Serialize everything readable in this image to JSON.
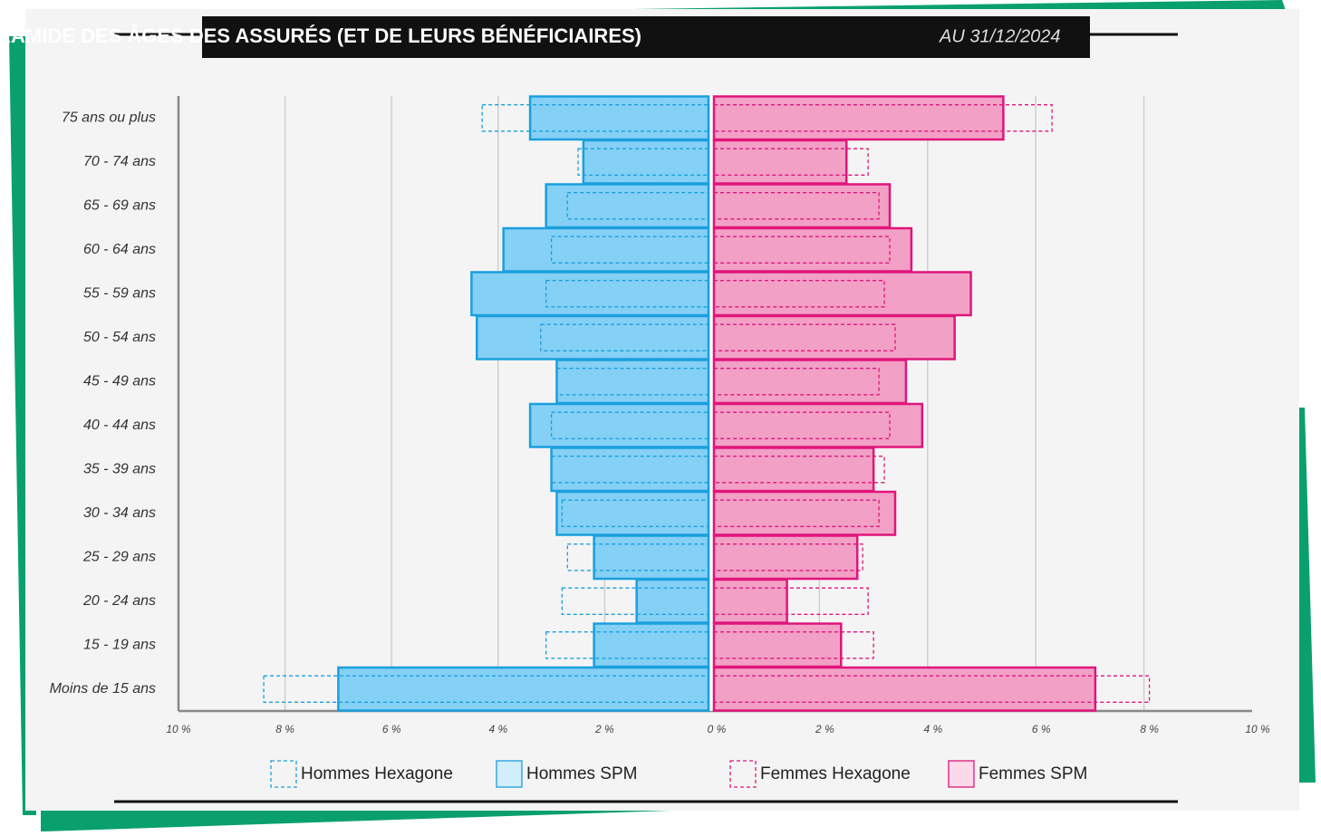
{
  "chart_data": {
    "type": "pyramid",
    "title": "PYRAMIDE DES ÂGES DES ASSURÉS (ET DE LEURS BÉNÉFICIAIRES)",
    "subtitle": "AU 31/12/2024",
    "categories": [
      "75 ans ou plus",
      "70 - 74 ans",
      "65 - 69 ans",
      "60 - 64 ans",
      "55 - 59 ans",
      "50 - 54 ans",
      "45 - 49 ans",
      "40 - 44 ans",
      "35 - 39 ans",
      "30 - 34 ans",
      "25 - 29 ans",
      "20 - 24 ans",
      "15 - 19 ans",
      "Moins de 15 ans"
    ],
    "series": [
      {
        "name": "Hommes Hexagone",
        "side": "left",
        "style": "dashed",
        "color": "#1a9fde",
        "values": [
          4.3,
          2.5,
          2.7,
          3.0,
          3.1,
          3.2,
          2.9,
          3.0,
          3.0,
          2.8,
          2.7,
          2.8,
          3.1,
          8.4
        ]
      },
      {
        "name": "Hommes SPM",
        "side": "left",
        "style": "solid",
        "color": "#1a9fde",
        "fill": "#85d0f5",
        "legend_fill": "#d2eefb",
        "values": [
          3.4,
          2.4,
          3.1,
          3.9,
          4.5,
          4.4,
          2.9,
          3.4,
          3.0,
          2.9,
          2.2,
          1.4,
          2.2,
          7.0
        ]
      },
      {
        "name": "Femmes Hexagone",
        "side": "right",
        "style": "dashed",
        "color": "#e0157a",
        "values": [
          6.3,
          2.9,
          3.1,
          3.3,
          3.2,
          3.4,
          3.1,
          3.3,
          3.2,
          3.1,
          2.8,
          2.9,
          3.0,
          8.1
        ]
      },
      {
        "name": "Femmes SPM",
        "side": "right",
        "style": "solid",
        "color": "#e0157a",
        "fill": "#f2a0c6",
        "legend_fill": "#fbd9e9",
        "values": [
          5.4,
          2.5,
          3.3,
          3.7,
          4.8,
          4.5,
          3.6,
          3.9,
          3.0,
          3.4,
          2.7,
          1.4,
          2.4,
          7.1
        ]
      }
    ],
    "left_axis": {
      "xlim": [
        0,
        10
      ],
      "xticks": [
        {
          "value": 10,
          "label": "10 %"
        },
        {
          "value": 8,
          "label": "8 %"
        },
        {
          "value": 6,
          "label": "6 %"
        },
        {
          "value": 4,
          "label": "4 %"
        },
        {
          "value": 2,
          "label": "2 %"
        }
      ]
    },
    "right_axis": {
      "xlim": [
        0,
        10
      ],
      "xticks": [
        {
          "value": 0,
          "label": "0 %"
        },
        {
          "value": 2,
          "label": "2 %"
        },
        {
          "value": 4,
          "label": "4 %"
        },
        {
          "value": 6,
          "label": "6 %"
        },
        {
          "value": 8,
          "label": "8 %"
        },
        {
          "value": 10,
          "label": "10 %"
        }
      ]
    },
    "grid": true
  }
}
